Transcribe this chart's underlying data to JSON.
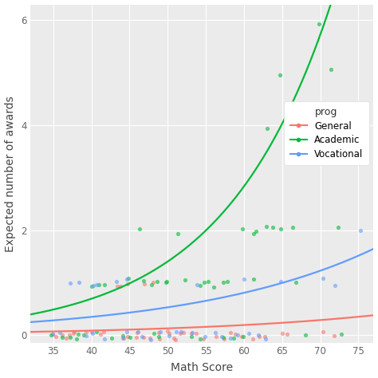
{
  "title": "",
  "xlabel": "Math Score",
  "ylabel": "Expected number of awards",
  "background_color": "#EBEBEB",
  "grid_color": "#FFFFFF",
  "xlim": [
    32,
    77
  ],
  "ylim": [
    -0.15,
    6.3
  ],
  "xticks": [
    35,
    40,
    45,
    50,
    55,
    60,
    65,
    70,
    75
  ],
  "yticks": [
    0,
    2,
    4,
    6
  ],
  "ytick_labels": [
    "0",
    "2",
    "4",
    "6"
  ],
  "legend_title": "prog",
  "line_colors": {
    "General": "#F8766D",
    "Academic": "#00BA38",
    "Vocational": "#619CFF"
  },
  "point_colors": {
    "General": "#F8766D",
    "Academic": "#00BA38",
    "Vocational": "#619CFF"
  },
  "general_scatter_x": [
    35,
    35,
    36,
    37,
    37,
    38,
    38,
    39,
    40,
    41,
    42,
    43,
    44,
    44,
    45,
    45,
    46,
    46,
    47,
    47,
    48,
    48,
    49,
    49,
    50,
    50,
    51,
    51,
    52,
    52,
    53,
    54,
    55,
    56,
    57,
    58,
    59,
    60,
    61,
    62,
    63,
    65,
    66,
    70,
    72
  ],
  "general_scatter_y": [
    0,
    0,
    0,
    0,
    0,
    0,
    0,
    0,
    0,
    0,
    0,
    1,
    0,
    1,
    1,
    0,
    0,
    0,
    1,
    0,
    1,
    0,
    0,
    0,
    0,
    0,
    0,
    0,
    0,
    0,
    0,
    0,
    0,
    0,
    0,
    0,
    0,
    0,
    0,
    0,
    0,
    0,
    0,
    0,
    0
  ],
  "academic_scatter_x": [
    35,
    36,
    37,
    38,
    38,
    39,
    40,
    41,
    41,
    42,
    43,
    44,
    45,
    45,
    46,
    47,
    48,
    48,
    49,
    49,
    50,
    50,
    51,
    52,
    53,
    54,
    54,
    55,
    55,
    56,
    57,
    57,
    58,
    59,
    60,
    60,
    61,
    61,
    62,
    63,
    63,
    64,
    65,
    65,
    66,
    67,
    68,
    69,
    70,
    71,
    72,
    73
  ],
  "academic_scatter_y": [
    0,
    0,
    0,
    0,
    0,
    0,
    1,
    1,
    0,
    1,
    0,
    0,
    1,
    0,
    2,
    1,
    1,
    0,
    0,
    1,
    1,
    1,
    2,
    1,
    0,
    1,
    0,
    1,
    1,
    1,
    1,
    0,
    1,
    0,
    2,
    0,
    1,
    2,
    2,
    4,
    2,
    2,
    5,
    2,
    2,
    1,
    0,
    4,
    6,
    5,
    2,
    0
  ],
  "vocational_scatter_x": [
    35,
    36,
    37,
    38,
    39,
    40,
    40,
    41,
    42,
    43,
    44,
    45,
    45,
    46,
    47,
    48,
    49,
    50,
    51,
    52,
    53,
    54,
    55,
    56,
    57,
    58,
    59,
    60,
    61,
    62,
    63,
    65,
    70,
    72,
    75
  ],
  "vocational_scatter_y": [
    0,
    0,
    1,
    1,
    0,
    1,
    0,
    1,
    0,
    1,
    0,
    1,
    0,
    0,
    0,
    0,
    0,
    0,
    0,
    0,
    0,
    1,
    0,
    0,
    0,
    0,
    0,
    1,
    0,
    0,
    0,
    1,
    1,
    1,
    2
  ],
  "poisson_params": {
    "General": {
      "intercept": -3.99,
      "slope": 0.0393
    },
    "Academic": {
      "intercept": -3.17,
      "slope": 0.0702
    },
    "Vocational": {
      "intercept": -2.72,
      "slope": 0.0418
    }
  }
}
